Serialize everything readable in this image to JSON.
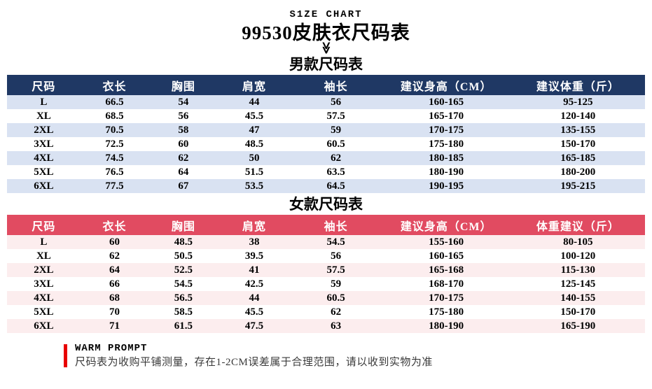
{
  "header": {
    "eyebrow": "S1ZE CHART",
    "title": "99530皮肤衣尺码表",
    "chevron_glyph": "≫"
  },
  "men": {
    "section_title": "男款尺码表",
    "headers": [
      "尺码",
      "衣长",
      "胸围",
      "肩宽",
      "袖长",
      "建议身高（CM）",
      "建议体重（斤）"
    ],
    "rows": [
      [
        "L",
        "66.5",
        "54",
        "44",
        "56",
        "160-165",
        "95-125"
      ],
      [
        "XL",
        "68.5",
        "56",
        "45.5",
        "57.5",
        "165-170",
        "120-140"
      ],
      [
        "2XL",
        "70.5",
        "58",
        "47",
        "59",
        "170-175",
        "135-155"
      ],
      [
        "3XL",
        "72.5",
        "60",
        "48.5",
        "60.5",
        "175-180",
        "150-170"
      ],
      [
        "4XL",
        "74.5",
        "62",
        "50",
        "62",
        "180-185",
        "165-185"
      ],
      [
        "5XL",
        "76.5",
        "64",
        "51.5",
        "63.5",
        "180-190",
        "180-200"
      ],
      [
        "6XL",
        "77.5",
        "67",
        "53.5",
        "64.5",
        "190-195",
        "195-215"
      ]
    ]
  },
  "women": {
    "section_title": "女款尺码表",
    "headers": [
      "尺码",
      "衣长",
      "胸围",
      "肩宽",
      "袖长",
      "建议身高（CM）",
      "体重建议（斤）"
    ],
    "rows": [
      [
        "L",
        "60",
        "48.5",
        "38",
        "54.5",
        "155-160",
        "80-105"
      ],
      [
        "XL",
        "62",
        "50.5",
        "39.5",
        "56",
        "160-165",
        "100-120"
      ],
      [
        "2XL",
        "64",
        "52.5",
        "41",
        "57.5",
        "165-168",
        "115-130"
      ],
      [
        "3XL",
        "66",
        "54.5",
        "42.5",
        "59",
        "168-170",
        "125-145"
      ],
      [
        "4XL",
        "68",
        "56.5",
        "44",
        "60.5",
        "170-175",
        "140-155"
      ],
      [
        "5XL",
        "70",
        "58.5",
        "45.5",
        "62",
        "175-180",
        "150-170"
      ],
      [
        "6XL",
        "71",
        "61.5",
        "47.5",
        "63",
        "180-190",
        "165-190"
      ]
    ]
  },
  "footer": {
    "heading": "WARM PROMPT",
    "note": "尺码表为收购平铺测量，存在1-2CM误差属于合理范围，请以收到实物为准"
  },
  "colors": {
    "men_header_bg": "#1F3864",
    "men_row_alt": "#D9E2F2",
    "women_header_bg": "#E14B61",
    "women_row_alt": "#FCEDEE",
    "accent_red": "#E80000"
  }
}
